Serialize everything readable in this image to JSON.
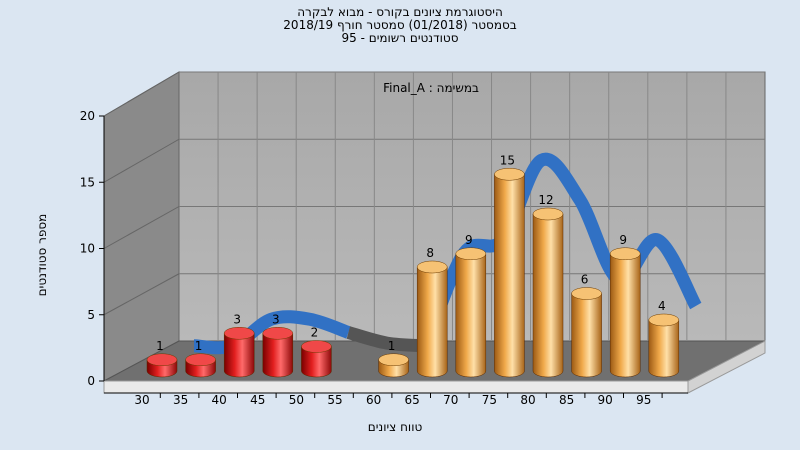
{
  "chart_data": {
    "type": "bar",
    "title_lines": [
      "היסטוגרמת ציונים בקורס - מבוא לבקרה",
      "בסמסטר  (01/2018)  סמסטר חורף 2018/19",
      "סטודנטים רשומים - 95"
    ],
    "annotation": "במשימה : Final_A",
    "ylabel": "מספר סטודנטים",
    "xlabel": "טווח ציונים",
    "ylim": [
      0,
      20
    ],
    "yticks": [
      "0",
      "5",
      "10",
      "15",
      "20"
    ],
    "categories": [
      "30",
      "35",
      "40",
      "45",
      "50",
      "55",
      "60",
      "65",
      "70",
      "75",
      "80",
      "85",
      "90",
      "95"
    ],
    "values": [
      1,
      1,
      3,
      3,
      2,
      null,
      1,
      8,
      9,
      15,
      12,
      6,
      9,
      4
    ],
    "value_labels": [
      "1",
      "1",
      "3",
      "3",
      "2",
      "",
      "1",
      "8",
      "9",
      "15",
      "12",
      "6",
      "9",
      "4"
    ],
    "bar_colors": [
      "red",
      "red",
      "red",
      "red",
      "red",
      "",
      "orange",
      "orange",
      "orange",
      "orange",
      "orange",
      "orange",
      "orange",
      "orange"
    ],
    "trend_line": [
      1,
      1,
      3,
      3,
      2,
      1.2,
      1,
      8,
      9,
      15,
      12,
      6,
      9,
      4
    ],
    "colors": {
      "background": "#dbe6f2",
      "wall_back": "#aeaeae",
      "wall_side": "#8c8c8c",
      "floor": "#6e6e6e",
      "trend_blue": "#3171c4",
      "trend_gray": "#555555",
      "bar_red": "#e21f1f",
      "bar_orange": "#f0a94a"
    },
    "grid": true
  }
}
